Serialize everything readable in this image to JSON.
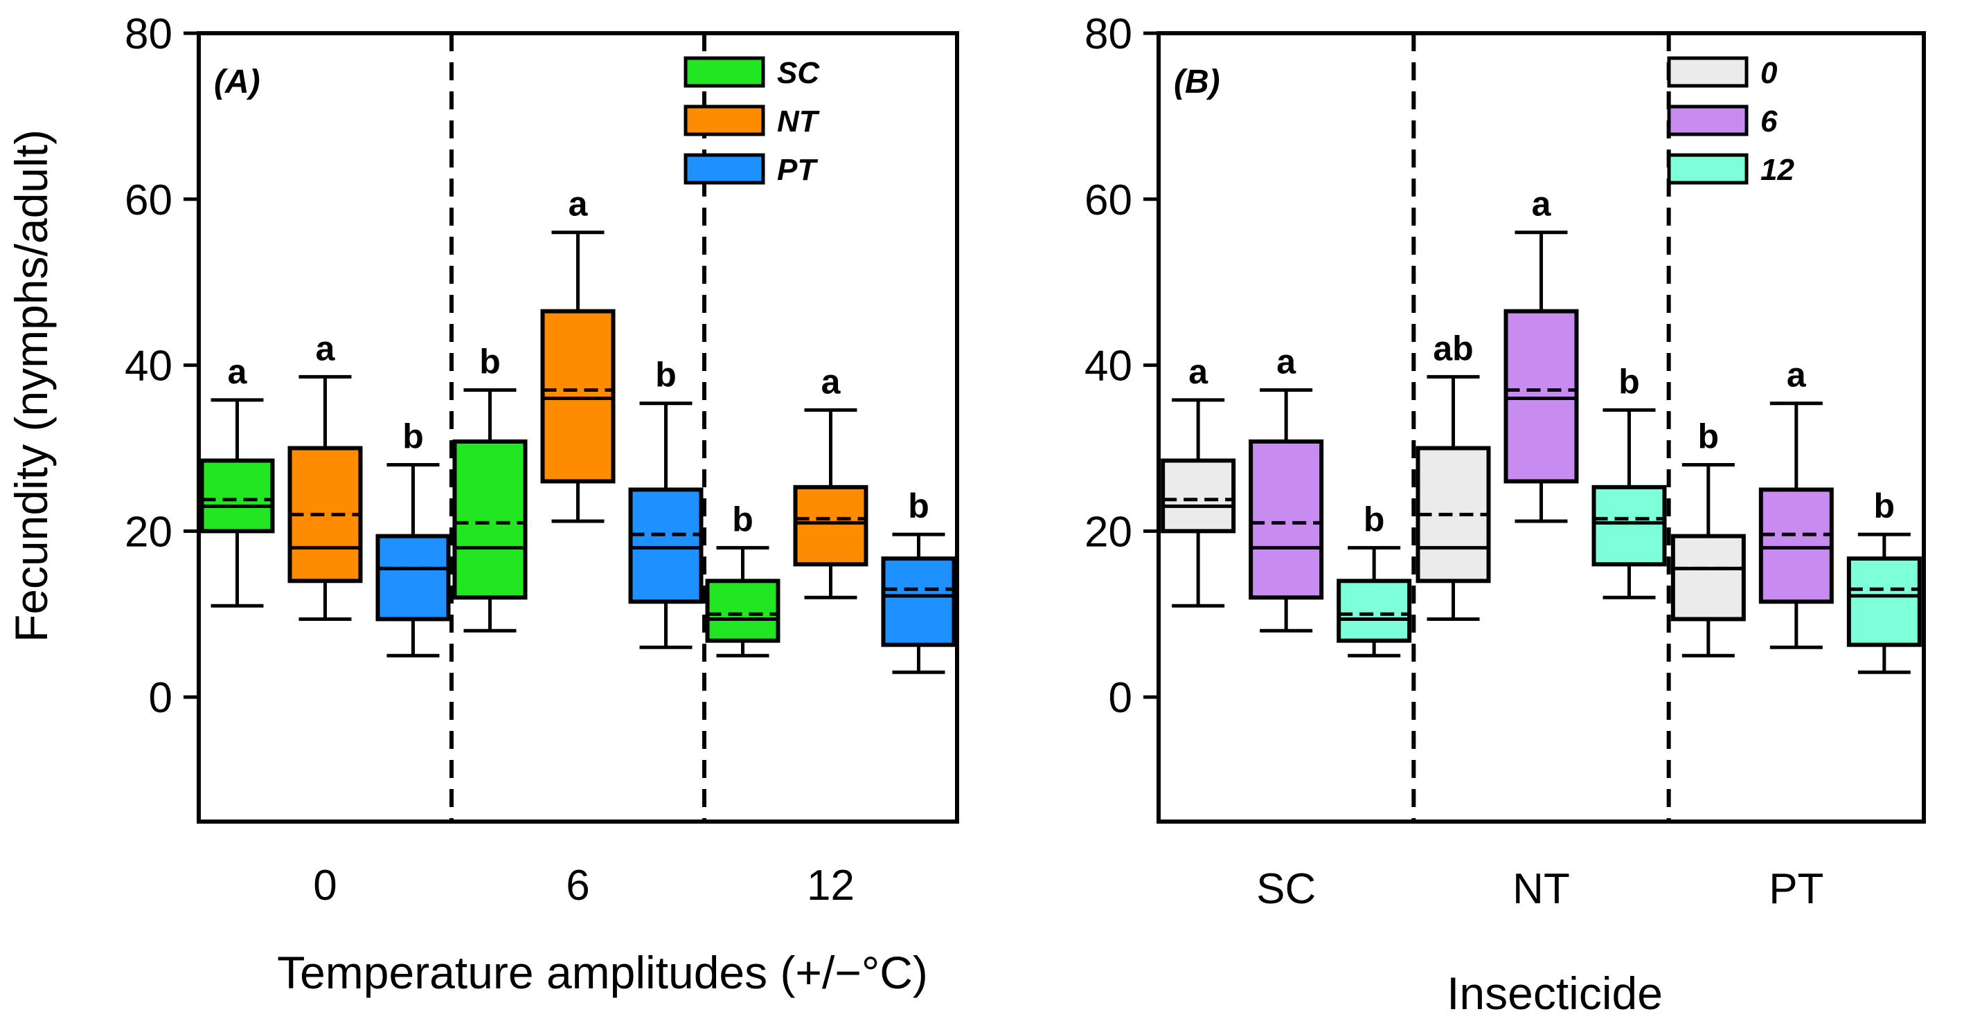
{
  "chart_data": [
    {
      "type": "box",
      "panel_label": "(A)",
      "title": "",
      "xlabel": "Temperature amplitudes (+/−°C)",
      "ylabel": "Fecundity (nymphs/adult)",
      "ylim": [
        -15,
        80
      ],
      "yticks": [
        "80",
        "60",
        "40",
        "20",
        "0"
      ],
      "ytick_values": [
        80,
        60,
        40,
        20,
        0
      ],
      "categories": [
        "0",
        "6",
        "12"
      ],
      "legend_position": "top-right",
      "legend": [
        {
          "name": "SC",
          "color": "#22e622"
        },
        {
          "name": "NT",
          "color": "#ff8c00"
        },
        {
          "name": "PT",
          "color": "#1e90ff"
        }
      ],
      "groups": [
        {
          "category": "0",
          "boxes": [
            {
              "series": "SC",
              "min": 11,
              "q1": 20,
              "median": 23,
              "mean": 23.8,
              "q3": 28.5,
              "max": 35.8,
              "letter": "a"
            },
            {
              "series": "NT",
              "min": 9.4,
              "q1": 14,
              "median": 18,
              "mean": 22,
              "q3": 30,
              "max": 38.6,
              "letter": "a"
            },
            {
              "series": "PT",
              "min": 5,
              "q1": 9.4,
              "median": 15.5,
              "mean": 15.5,
              "q3": 19.4,
              "max": 28,
              "letter": "b"
            }
          ]
        },
        {
          "category": "6",
          "boxes": [
            {
              "series": "SC",
              "min": 8,
              "q1": 12,
              "median": 18,
              "mean": 21,
              "q3": 30.8,
              "max": 37,
              "letter": "b"
            },
            {
              "series": "NT",
              "min": 21.2,
              "q1": 26,
              "median": 36,
              "mean": 37,
              "q3": 46.5,
              "max": 56,
              "letter": "a"
            },
            {
              "series": "PT",
              "min": 6,
              "q1": 11.5,
              "median": 18,
              "mean": 19.6,
              "q3": 25,
              "max": 35.4,
              "letter": "b"
            }
          ]
        },
        {
          "category": "12",
          "boxes": [
            {
              "series": "SC",
              "min": 5,
              "q1": 6.8,
              "median": 9.4,
              "mean": 10,
              "q3": 14,
              "max": 18,
              "letter": "b"
            },
            {
              "series": "NT",
              "min": 12,
              "q1": 16,
              "median": 21,
              "mean": 21.5,
              "q3": 25.3,
              "max": 34.6,
              "letter": "a"
            },
            {
              "series": "PT",
              "min": 3,
              "q1": 6.3,
              "median": 12.2,
              "mean": 13,
              "q3": 16.7,
              "max": 19.6,
              "letter": "b"
            }
          ]
        }
      ]
    },
    {
      "type": "box",
      "panel_label": "(B)",
      "title": "",
      "xlabel": "Insecticide",
      "ylabel": "",
      "ylim": [
        -15,
        80
      ],
      "yticks": [
        "80",
        "60",
        "40",
        "20",
        "0"
      ],
      "ytick_values": [
        80,
        60,
        40,
        20,
        0
      ],
      "categories": [
        "SC",
        "NT",
        "PT"
      ],
      "legend_position": "top-right",
      "legend": [
        {
          "name": "0",
          "color": "#ebebeb"
        },
        {
          "name": "6",
          "color": "#c88cf0"
        },
        {
          "name": "12",
          "color": "#7dffd9"
        }
      ],
      "groups": [
        {
          "category": "SC",
          "boxes": [
            {
              "series": "0",
              "min": 11,
              "q1": 20,
              "median": 23,
              "mean": 23.8,
              "q3": 28.5,
              "max": 35.8,
              "letter": "a"
            },
            {
              "series": "6",
              "min": 8,
              "q1": 12,
              "median": 18,
              "mean": 21,
              "q3": 30.8,
              "max": 37,
              "letter": "a"
            },
            {
              "series": "12",
              "min": 5,
              "q1": 6.8,
              "median": 9.4,
              "mean": 10,
              "q3": 14,
              "max": 18,
              "letter": "b"
            }
          ]
        },
        {
          "category": "NT",
          "boxes": [
            {
              "series": "0",
              "min": 9.4,
              "q1": 14,
              "median": 18,
              "mean": 22,
              "q3": 30,
              "max": 38.6,
              "letter": "ab"
            },
            {
              "series": "6",
              "min": 21.2,
              "q1": 26,
              "median": 36,
              "mean": 37,
              "q3": 46.5,
              "max": 56,
              "letter": "a"
            },
            {
              "series": "12",
              "min": 12,
              "q1": 16,
              "median": 21,
              "mean": 21.5,
              "q3": 25.3,
              "max": 34.6,
              "letter": "b"
            }
          ]
        },
        {
          "category": "PT",
          "boxes": [
            {
              "series": "0",
              "min": 5,
              "q1": 9.4,
              "median": 15.5,
              "mean": 15.5,
              "q3": 19.4,
              "max": 28,
              "letter": "b"
            },
            {
              "series": "6",
              "min": 6,
              "q1": 11.5,
              "median": 18,
              "mean": 19.6,
              "q3": 25,
              "max": 35.4,
              "letter": "a"
            },
            {
              "series": "12",
              "min": 3,
              "q1": 6.3,
              "median": 12.2,
              "mean": 13,
              "q3": 16.7,
              "max": 19.6,
              "letter": "b"
            }
          ]
        }
      ]
    }
  ]
}
